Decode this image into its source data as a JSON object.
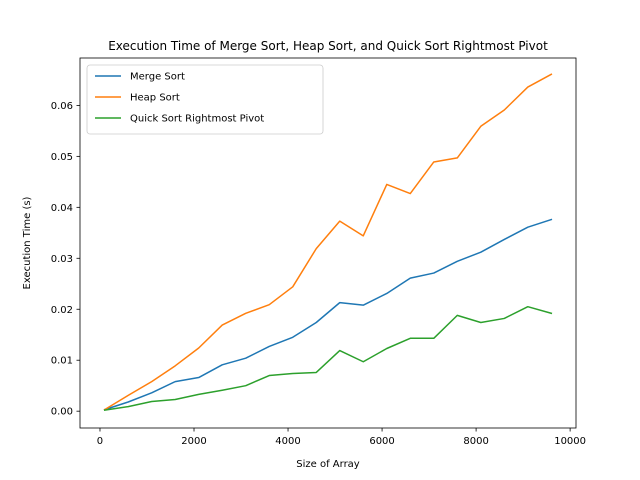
{
  "chart_data": {
    "type": "line",
    "title": "Execution Time of Merge Sort, Heap Sort, and Quick Sort Rightmost Pivot",
    "xlabel": "Size of Array",
    "ylabel": "Execution Time (s)",
    "xlim": [
      -425,
      10125
    ],
    "ylim": [
      -0.0033,
      0.0693
    ],
    "xticks": [
      0,
      2000,
      4000,
      6000,
      8000,
      10000
    ],
    "xtick_labels": [
      "0",
      "2000",
      "4000",
      "6000",
      "8000",
      "10000"
    ],
    "yticks": [
      0.0,
      0.01,
      0.02,
      0.03,
      0.04,
      0.05,
      0.06
    ],
    "ytick_labels": [
      "0.00",
      "0.01",
      "0.02",
      "0.03",
      "0.04",
      "0.05",
      "0.06"
    ],
    "grid": false,
    "legend_position": "top-left",
    "x": [
      100,
      600,
      1100,
      1600,
      2100,
      2600,
      3100,
      3600,
      4100,
      4600,
      5100,
      5600,
      6100,
      6600,
      7100,
      7600,
      8100,
      8600,
      9100,
      9600
    ],
    "series": [
      {
        "name": "Merge Sort",
        "color": "#1f77b4",
        "values": [
          0.0003,
          0.0018,
          0.0036,
          0.0058,
          0.0066,
          0.0091,
          0.0104,
          0.0127,
          0.0145,
          0.0174,
          0.0213,
          0.0208,
          0.0231,
          0.0261,
          0.0271,
          0.0294,
          0.0312,
          0.0337,
          0.0361,
          0.0376
        ]
      },
      {
        "name": "Heap Sort",
        "color": "#ff7f0e",
        "values": [
          0.0003,
          0.0031,
          0.0058,
          0.0089,
          0.0124,
          0.0169,
          0.0192,
          0.0209,
          0.0244,
          0.0319,
          0.0373,
          0.0344,
          0.0445,
          0.0427,
          0.0489,
          0.0497,
          0.0559,
          0.0591,
          0.0636,
          0.0661
        ]
      },
      {
        "name": "Quick Sort Rightmost Pivot",
        "color": "#2ca02c",
        "values": [
          0.0002,
          0.0009,
          0.0019,
          0.0023,
          0.0033,
          0.0041,
          0.005,
          0.007,
          0.0074,
          0.0076,
          0.0119,
          0.0097,
          0.0123,
          0.0143,
          0.0143,
          0.0188,
          0.0174,
          0.0182,
          0.0205,
          0.0192
        ]
      }
    ]
  }
}
